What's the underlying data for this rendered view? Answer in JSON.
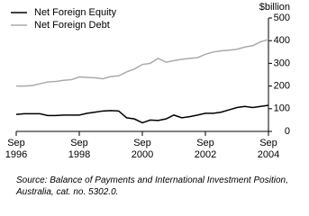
{
  "chart_data": {
    "type": "line",
    "y_label": "$billion",
    "source": "Source: Balance of Payments and International Investment Position,\nAustralia, cat. no. 5302.0.",
    "categories": [
      "Sep\n1996",
      null,
      null,
      null,
      null,
      null,
      null,
      null,
      "Sep\n1998",
      null,
      null,
      null,
      null,
      null,
      null,
      null,
      "Sep\n2000",
      null,
      null,
      null,
      null,
      null,
      null,
      null,
      "Sep\n2002",
      null,
      null,
      null,
      null,
      null,
      null,
      null,
      "Sep\n2004"
    ],
    "series": [
      {
        "name": "Net Foreign Equity",
        "color": "#000000",
        "values": [
          75,
          78,
          78,
          78,
          70,
          70,
          72,
          72,
          72,
          80,
          85,
          90,
          92,
          90,
          60,
          55,
          38,
          50,
          48,
          55,
          72,
          60,
          65,
          72,
          80,
          80,
          85,
          95,
          105,
          110,
          105,
          110,
          115
        ]
      },
      {
        "name": "Net Foreign Debt",
        "color": "#aaaaaa",
        "values": [
          200,
          200,
          202,
          210,
          218,
          220,
          225,
          228,
          240,
          238,
          236,
          232,
          242,
          245,
          262,
          275,
          295,
          300,
          322,
          305,
          312,
          318,
          322,
          325,
          340,
          350,
          355,
          358,
          362,
          372,
          378,
          395,
          405
        ]
      }
    ],
    "ylim": [
      0,
      500
    ],
    "yticks": [
      0,
      100,
      200,
      300,
      400,
      500
    ],
    "y_axis_side": "right",
    "grid": false
  }
}
